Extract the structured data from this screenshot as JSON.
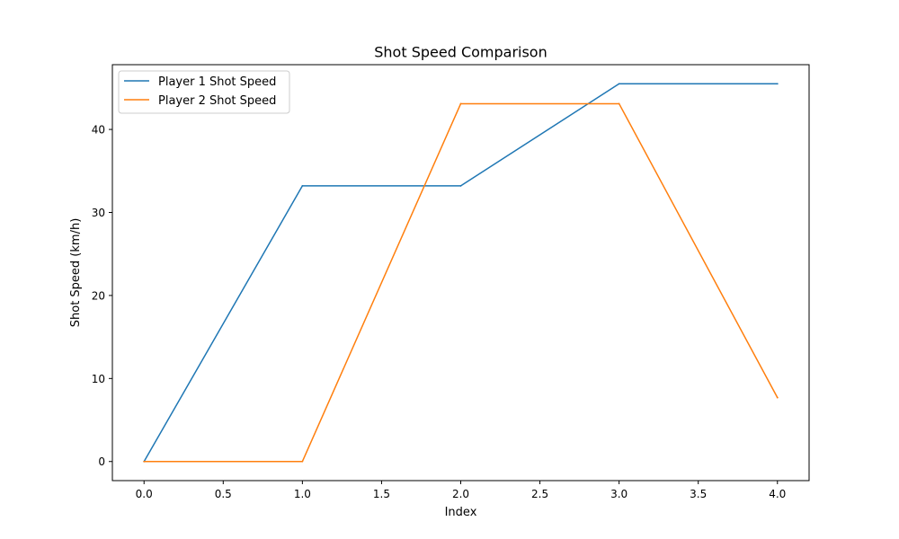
{
  "chart_data": {
    "type": "line",
    "title": "Shot Speed Comparison",
    "xlabel": "Index",
    "ylabel": "Shot Speed (km/h)",
    "x": [
      0,
      1,
      2,
      3,
      4
    ],
    "xlim": [
      -0.2,
      4.2
    ],
    "ylim": [
      -2.3,
      47.8
    ],
    "xticks": [
      0.0,
      0.5,
      1.0,
      1.5,
      2.0,
      2.5,
      3.0,
      3.5,
      4.0
    ],
    "xtick_labels": [
      "0.0",
      "0.5",
      "1.0",
      "1.5",
      "2.0",
      "2.5",
      "3.0",
      "3.5",
      "4.0"
    ],
    "yticks": [
      0,
      10,
      20,
      30,
      40
    ],
    "ytick_labels": [
      "0",
      "10",
      "20",
      "30",
      "40"
    ],
    "grid": false,
    "legend_position": "upper-left",
    "series": [
      {
        "name": "Player 1 Shot Speed",
        "color": "#1f77b4",
        "values": [
          0,
          33.2,
          33.2,
          45.5,
          45.5
        ]
      },
      {
        "name": "Player 2 Shot Speed",
        "color": "#ff7f0e",
        "values": [
          0,
          0,
          43.1,
          43.1,
          7.7
        ]
      }
    ]
  }
}
